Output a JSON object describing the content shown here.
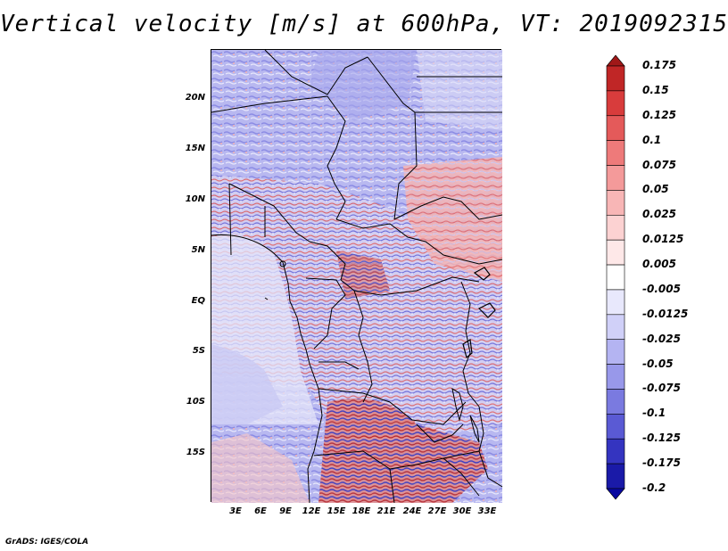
{
  "title": "Vertical velocity [m/s] at 600hPa, VT: 2019092315",
  "credit": "GrADS: IGES/COLA",
  "lat_labels": [
    "20N",
    "15N",
    "10N",
    "5N",
    "EQ",
    "5S",
    "10S",
    "15S"
  ],
  "lon_labels": [
    "3E",
    "6E",
    "9E",
    "12E",
    "15E",
    "18E",
    "21E",
    "24E",
    "27E",
    "30E",
    "33E"
  ],
  "colorbar": {
    "labels": [
      "0.175",
      "0.15",
      "0.125",
      "0.1",
      "0.075",
      "0.05",
      "0.025",
      "0.0125",
      "0.005",
      "-0.005",
      "-0.0125",
      "-0.025",
      "-0.05",
      "-0.075",
      "-0.1",
      "-0.125",
      "-0.175",
      "-0.2"
    ],
    "colors": [
      "#a01818",
      "#c02626",
      "#d83c3c",
      "#e45a5a",
      "#ee7a7a",
      "#f49a9a",
      "#f8b6b6",
      "#fcd2d2",
      "#fee8e8",
      "#ffffff",
      "#e8e8fc",
      "#d0d0f8",
      "#b4b4f2",
      "#9898ea",
      "#7a7ae0",
      "#5a5ad4",
      "#3434c0",
      "#1a1aa8",
      "#0808a0"
    ]
  }
}
